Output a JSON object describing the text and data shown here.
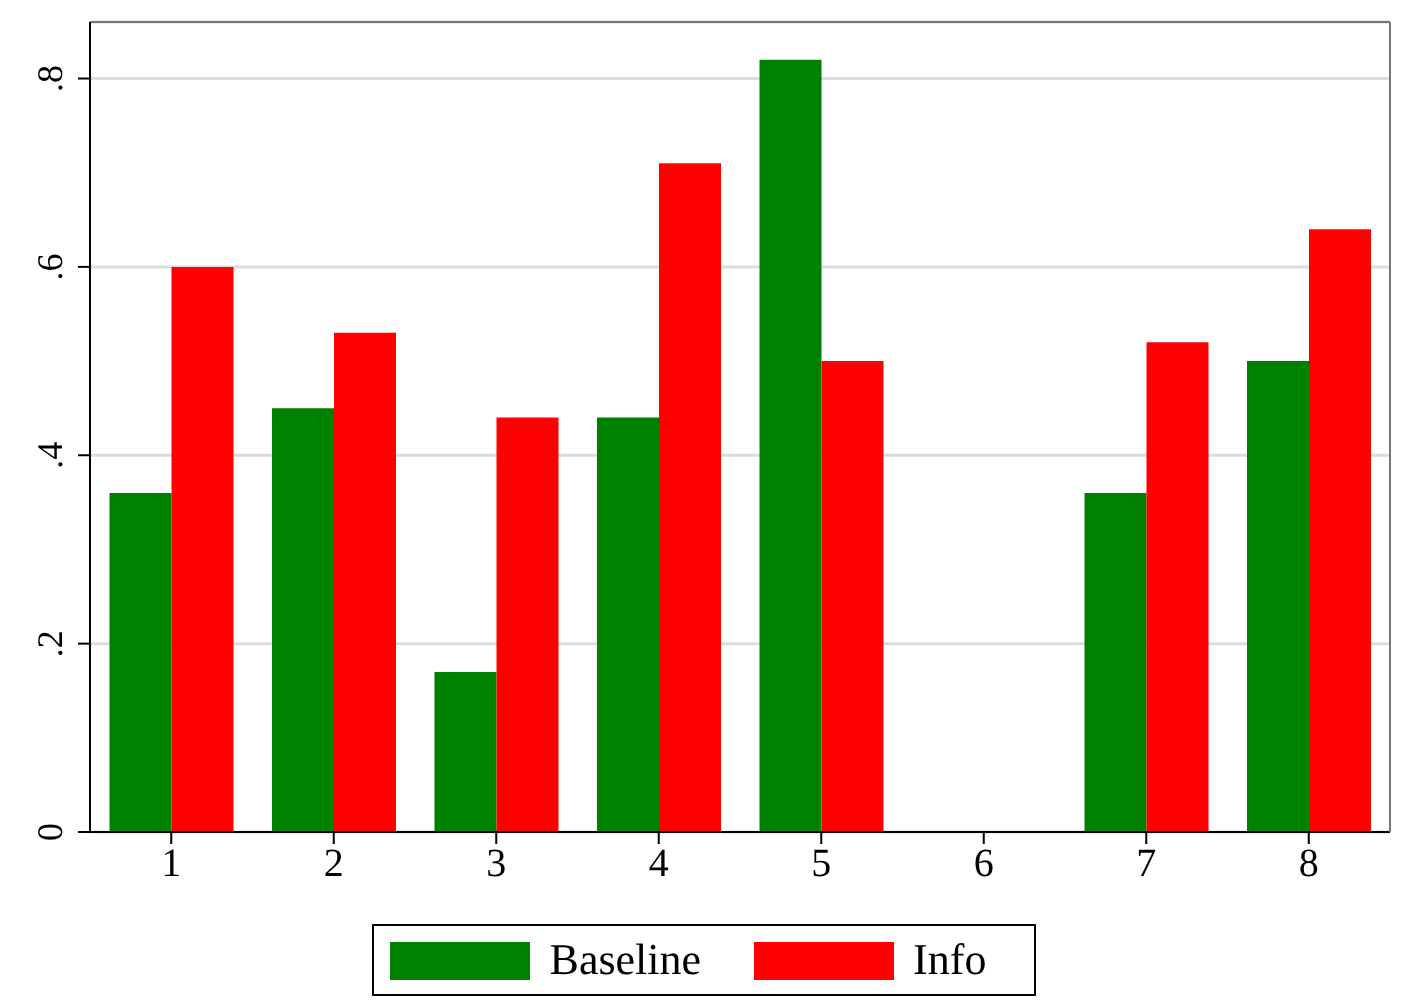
{
  "chart_data": {
    "type": "bar",
    "categories": [
      "1",
      "2",
      "3",
      "4",
      "5",
      "6",
      "7",
      "8"
    ],
    "series": [
      {
        "name": "Baseline",
        "color": "#008000",
        "values": [
          0.36,
          0.45,
          0.17,
          0.44,
          0.82,
          null,
          0.36,
          0.5
        ]
      },
      {
        "name": "Info",
        "color": "#ff0000",
        "values": [
          0.6,
          0.53,
          0.44,
          0.71,
          0.5,
          null,
          0.52,
          0.64
        ]
      }
    ],
    "ylim": [
      0,
      0.86
    ],
    "yticks": [
      0,
      {
        "value": 0.2,
        "label": ".2"
      },
      {
        "value": 0.4,
        "label": ".4"
      },
      {
        "value": 0.6,
        "label": ".6"
      },
      {
        "value": 0.8,
        "label": ".8"
      }
    ],
    "grid": "y",
    "legend": "bottom"
  }
}
